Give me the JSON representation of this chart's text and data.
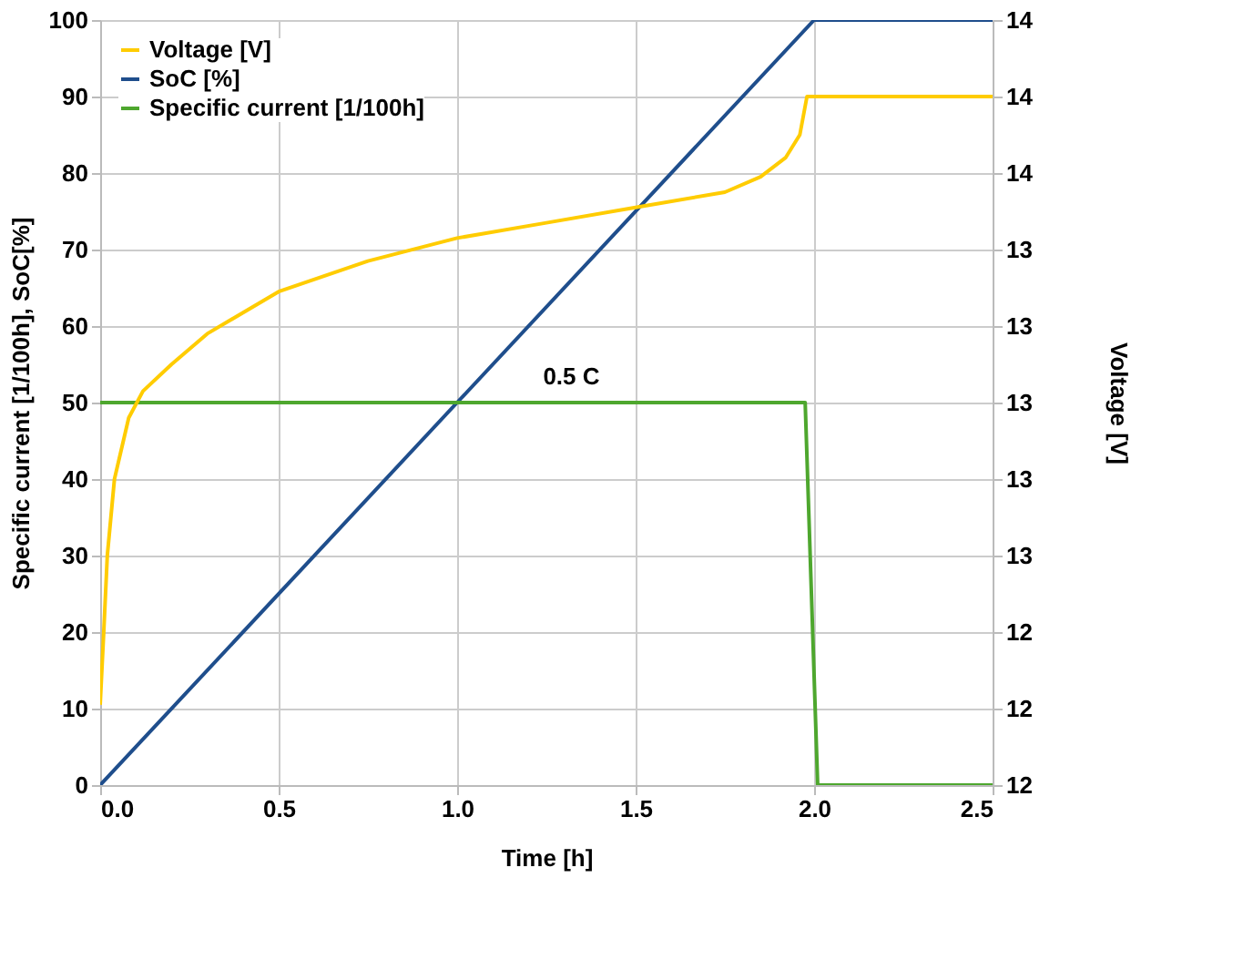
{
  "chart_data": {
    "type": "line",
    "xlabel": "Time [h]",
    "ylabel": "Specific current [1/100h], SoC[%]",
    "y2label": "Voltage [V]",
    "xlim": [
      0,
      2.5
    ],
    "xticks": [
      {
        "value": 0,
        "label": "0.0"
      },
      0.5,
      {
        "value": 1,
        "label": "1.0"
      },
      1.5,
      {
        "value": 2,
        "label": "2.0"
      },
      2.5
    ],
    "ylim": [
      0,
      100
    ],
    "yticks": [
      0,
      10,
      20,
      30,
      40,
      50,
      60,
      70,
      80,
      90,
      100
    ],
    "y2lim": [
      12,
      14
    ],
    "y2ticks": [
      12,
      {
        "value": 12.2,
        "label": "12"
      },
      {
        "value": 12.4,
        "label": "12"
      },
      {
        "value": 12.6,
        "label": "13"
      },
      {
        "value": 12.8,
        "label": "13"
      },
      13,
      {
        "value": 13.2,
        "label": "13"
      },
      {
        "value": 13.4,
        "label": "13"
      },
      {
        "value": 13.6,
        "label": "14"
      },
      {
        "value": 13.8,
        "label": "14"
      },
      14
    ],
    "grid": true,
    "legend": "top left",
    "line_style": "solid",
    "marker": "none",
    "annotations": [
      {
        "text": "0.5 C",
        "x": 1.32,
        "y": 50
      }
    ],
    "series": [
      {
        "name": "Voltage [V]",
        "color": "#ffcc00",
        "axis": "y2",
        "x": [
          0,
          0.01,
          0.02,
          0.04,
          0.08,
          0.12,
          0.2,
          0.3,
          0.5,
          0.75,
          1.0,
          1.25,
          1.5,
          1.75,
          1.85,
          1.92,
          1.96,
          1.98,
          2.5
        ],
        "values": [
          12.21,
          12.4,
          12.6,
          12.8,
          12.96,
          13.03,
          13.1,
          13.18,
          13.29,
          13.37,
          13.43,
          13.47,
          13.51,
          13.55,
          13.59,
          13.64,
          13.7,
          13.8,
          13.8
        ]
      },
      {
        "name": "SoC [%]",
        "color": "#1f4e8c",
        "x": [
          0,
          2.0,
          2.5
        ],
        "values": [
          0,
          100,
          100
        ]
      },
      {
        "name": "Specific current [1/100h]",
        "color": "#4ea72e",
        "x": [
          0,
          1.975,
          2.01,
          2.5
        ],
        "values": [
          50,
          50,
          0,
          0
        ]
      }
    ]
  }
}
